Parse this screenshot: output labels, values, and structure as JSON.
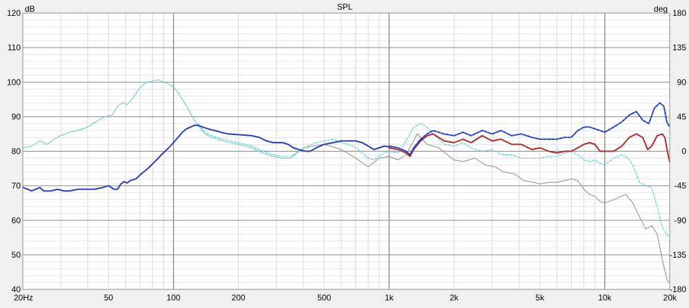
{
  "chart_data": {
    "type": "line",
    "title": "SPL",
    "x_scale": "log",
    "xlim": [
      20,
      20000
    ],
    "ylim": [
      40,
      120
    ],
    "y2lim": [
      -180,
      180
    ],
    "ylabel": "dB",
    "y2label": "deg",
    "x_major_ticks": [
      {
        "v": 20,
        "label": "20Hz"
      },
      {
        "v": 50,
        "label": "50"
      },
      {
        "v": 100,
        "label": "100"
      },
      {
        "v": 200,
        "label": "200"
      },
      {
        "v": 500,
        "label": "500"
      },
      {
        "v": 1000,
        "label": "1k"
      },
      {
        "v": 2000,
        "label": "2k"
      },
      {
        "v": 5000,
        "label": "5k"
      },
      {
        "v": 10000,
        "label": "10k"
      },
      {
        "v": 20000,
        "label": "20k"
      }
    ],
    "y_ticks": [
      {
        "v": 40,
        "label": "40"
      },
      {
        "v": 50,
        "label": "50"
      },
      {
        "v": 60,
        "label": "60"
      },
      {
        "v": 70,
        "label": "70"
      },
      {
        "v": 80,
        "label": "80"
      },
      {
        "v": 90,
        "label": "90"
      },
      {
        "v": 100,
        "label": "100"
      },
      {
        "v": 110,
        "label": "110"
      },
      {
        "v": 120,
        "label": "120"
      }
    ],
    "y2_ticks": [
      {
        "v": -180,
        "label": "-180"
      },
      {
        "v": -135,
        "label": "-135"
      },
      {
        "v": -90,
        "label": "-90"
      },
      {
        "v": -45,
        "label": "-45"
      },
      {
        "v": 0,
        "label": "0"
      },
      {
        "v": 45,
        "label": "45"
      },
      {
        "v": 90,
        "label": "90"
      },
      {
        "v": 135,
        "label": "135"
      },
      {
        "v": 180,
        "label": "180"
      }
    ],
    "grid": true,
    "series": [
      {
        "color": "#888888",
        "dash": "solid",
        "width": 1,
        "points": [
          [
            400,
            81
          ],
          [
            500,
            82
          ],
          [
            600,
            80.5
          ],
          [
            700,
            78
          ],
          [
            800,
            75.5
          ],
          [
            900,
            78
          ],
          [
            1000,
            78.5
          ],
          [
            1100,
            77.5
          ],
          [
            1200,
            79
          ],
          [
            1350,
            85
          ],
          [
            1500,
            82
          ],
          [
            1700,
            81
          ],
          [
            1900,
            78.5
          ],
          [
            2000,
            77.5
          ],
          [
            2200,
            77
          ],
          [
            2500,
            78
          ],
          [
            2800,
            76
          ],
          [
            3100,
            75.5
          ],
          [
            3400,
            74
          ],
          [
            3800,
            73.5
          ],
          [
            4200,
            71.5
          ],
          [
            4700,
            71
          ],
          [
            5000,
            70.5
          ],
          [
            5500,
            71
          ],
          [
            6000,
            71
          ],
          [
            6500,
            71.5
          ],
          [
            7000,
            72
          ],
          [
            7500,
            71.5
          ],
          [
            8000,
            69
          ],
          [
            8500,
            67.5
          ],
          [
            9000,
            67
          ],
          [
            9500,
            65.5
          ],
          [
            10000,
            65
          ],
          [
            11000,
            66
          ],
          [
            12500,
            67.5
          ],
          [
            13500,
            65
          ],
          [
            14500,
            61
          ],
          [
            15500,
            57.5
          ],
          [
            16500,
            58.5
          ],
          [
            17500,
            56
          ],
          [
            18500,
            48.5
          ],
          [
            19500,
            42.5
          ],
          [
            20000,
            42
          ]
        ]
      },
      {
        "color": "#5cc9be",
        "dash": "solid",
        "width": 1,
        "points": [
          [
            20,
            81
          ],
          [
            22,
            81.5
          ],
          [
            24,
            83
          ],
          [
            26,
            82
          ],
          [
            28,
            83.5
          ],
          [
            30,
            84.5
          ],
          [
            33,
            85.5
          ],
          [
            36,
            86
          ],
          [
            40,
            87
          ],
          [
            45,
            89
          ],
          [
            48,
            90
          ],
          [
            52,
            90.5
          ],
          [
            55,
            93
          ],
          [
            58,
            94
          ],
          [
            61,
            93.5
          ],
          [
            65,
            95.5
          ],
          [
            70,
            98.5
          ],
          [
            75,
            100
          ],
          [
            80,
            100.3
          ],
          [
            85,
            100.7
          ],
          [
            90,
            100
          ],
          [
            95,
            99.5
          ],
          [
            100,
            98.5
          ],
          [
            105,
            97
          ],
          [
            110,
            95
          ],
          [
            115,
            93
          ],
          [
            120,
            91
          ],
          [
            125,
            89
          ],
          [
            130,
            87.5
          ],
          [
            140,
            85
          ],
          [
            150,
            84
          ],
          [
            170,
            83
          ],
          [
            200,
            82
          ],
          [
            230,
            81
          ],
          [
            260,
            79.5
          ],
          [
            290,
            78.5
          ],
          [
            320,
            78
          ],
          [
            350,
            78
          ],
          [
            400,
            81
          ]
        ]
      },
      {
        "color": "#44cccc",
        "dash": "4,2",
        "width": 1,
        "points": [
          [
            130,
            88
          ],
          [
            140,
            85.5
          ],
          [
            150,
            84.5
          ],
          [
            170,
            83.5
          ],
          [
            200,
            82.5
          ],
          [
            230,
            81.5
          ],
          [
            260,
            80
          ],
          [
            290,
            79
          ],
          [
            320,
            78.5
          ],
          [
            350,
            78.5
          ],
          [
            380,
            80
          ],
          [
            420,
            81.5
          ],
          [
            460,
            82.5
          ],
          [
            500,
            83
          ],
          [
            550,
            83.5
          ],
          [
            600,
            82.5
          ],
          [
            650,
            82
          ],
          [
            700,
            81
          ],
          [
            750,
            79.5
          ],
          [
            800,
            78
          ],
          [
            850,
            77.5
          ],
          [
            900,
            78.5
          ],
          [
            950,
            79.5
          ],
          [
            1000,
            80
          ],
          [
            1100,
            79.5
          ],
          [
            1200,
            83
          ],
          [
            1300,
            87
          ],
          [
            1400,
            88
          ],
          [
            1500,
            87
          ],
          [
            1600,
            85
          ],
          [
            1800,
            82
          ],
          [
            2000,
            81.5
          ],
          [
            2200,
            82.5
          ],
          [
            2400,
            81
          ],
          [
            2700,
            80
          ],
          [
            3000,
            80.5
          ],
          [
            3300,
            79
          ],
          [
            3700,
            79
          ],
          [
            4100,
            78
          ],
          [
            4600,
            78
          ],
          [
            5000,
            78
          ],
          [
            5500,
            78.5
          ],
          [
            6000,
            78.5
          ],
          [
            6500,
            79.5
          ],
          [
            7000,
            80
          ],
          [
            7500,
            79
          ],
          [
            8000,
            77.5
          ],
          [
            8500,
            77
          ],
          [
            9000,
            77.5
          ],
          [
            9500,
            76.5
          ],
          [
            10000,
            76
          ],
          [
            11000,
            78
          ],
          [
            12000,
            79
          ],
          [
            12800,
            78
          ],
          [
            13500,
            76
          ],
          [
            14500,
            71
          ],
          [
            15500,
            70
          ],
          [
            16500,
            69.5
          ],
          [
            17500,
            64
          ],
          [
            18500,
            58
          ],
          [
            19500,
            55.5
          ],
          [
            20000,
            55.5
          ]
        ]
      },
      {
        "color": "#b02828",
        "dash": "solid",
        "width": 2,
        "points": [
          [
            1000,
            81
          ],
          [
            1100,
            80.5
          ],
          [
            1200,
            79.5
          ],
          [
            1250,
            78.5
          ],
          [
            1300,
            80.5
          ],
          [
            1400,
            83
          ],
          [
            1500,
            84.5
          ],
          [
            1600,
            85
          ],
          [
            1800,
            83
          ],
          [
            2000,
            82.5
          ],
          [
            2200,
            83.5
          ],
          [
            2400,
            82.5
          ],
          [
            2700,
            84.5
          ],
          [
            3000,
            83
          ],
          [
            3300,
            83.5
          ],
          [
            3700,
            82
          ],
          [
            4100,
            82
          ],
          [
            4600,
            80.5
          ],
          [
            5000,
            81
          ],
          [
            5500,
            80
          ],
          [
            6000,
            79.5
          ],
          [
            6500,
            80
          ],
          [
            7000,
            80
          ],
          [
            7500,
            81
          ],
          [
            8000,
            82
          ],
          [
            8500,
            82.5
          ],
          [
            9000,
            82
          ],
          [
            9500,
            80
          ],
          [
            10000,
            80
          ],
          [
            11000,
            80
          ],
          [
            12000,
            81.5
          ],
          [
            13000,
            84
          ],
          [
            14000,
            85
          ],
          [
            15000,
            84
          ],
          [
            15800,
            80.5
          ],
          [
            16500,
            81.5
          ],
          [
            17500,
            84.5
          ],
          [
            18500,
            85
          ],
          [
            19000,
            84
          ],
          [
            19500,
            80
          ],
          [
            20000,
            77
          ]
        ]
      },
      {
        "color": "#2040cc",
        "dash": "4,2",
        "width": 2,
        "points": [
          [
            1000,
            81.5
          ],
          [
            1100,
            81
          ],
          [
            1200,
            80
          ],
          [
            1250,
            79
          ],
          [
            1300,
            81
          ],
          [
            1400,
            83.5
          ],
          [
            1500,
            85
          ],
          [
            1600,
            86
          ],
          [
            1800,
            85
          ],
          [
            2000,
            84.5
          ],
          [
            2200,
            85.5
          ],
          [
            2400,
            84.5
          ],
          [
            2700,
            86
          ],
          [
            3000,
            85
          ],
          [
            3300,
            86
          ],
          [
            3700,
            84.5
          ],
          [
            4100,
            85
          ],
          [
            4600,
            84
          ],
          [
            5000,
            83.5
          ],
          [
            5500,
            83.5
          ],
          [
            6000,
            83.5
          ],
          [
            6500,
            84
          ],
          [
            7000,
            84
          ],
          [
            7500,
            86
          ],
          [
            8000,
            87
          ],
          [
            8500,
            87
          ],
          [
            9000,
            86.5
          ],
          [
            9500,
            86
          ],
          [
            10000,
            85.5
          ],
          [
            11000,
            87
          ],
          [
            12000,
            88.5
          ],
          [
            13000,
            90.5
          ],
          [
            14000,
            91.5
          ],
          [
            15000,
            89
          ],
          [
            16000,
            88
          ],
          [
            17000,
            92.5
          ],
          [
            18000,
            94
          ],
          [
            18800,
            93
          ],
          [
            19400,
            88.5
          ],
          [
            20000,
            87
          ]
        ]
      },
      {
        "color": "#2a3cb0",
        "dash": "solid",
        "width": 2,
        "points": [
          [
            20,
            69.5
          ],
          [
            21,
            69
          ],
          [
            22,
            68.5
          ],
          [
            23,
            69
          ],
          [
            24,
            69.5
          ],
          [
            25,
            68.5
          ],
          [
            27,
            68.5
          ],
          [
            29,
            69
          ],
          [
            31,
            68.5
          ],
          [
            33,
            68.5
          ],
          [
            36,
            69
          ],
          [
            40,
            69
          ],
          [
            43,
            69
          ],
          [
            47,
            69.5
          ],
          [
            50,
            70
          ],
          [
            53,
            69
          ],
          [
            55,
            69
          ],
          [
            57,
            70.5
          ],
          [
            59,
            71.2
          ],
          [
            61,
            70.8
          ],
          [
            63,
            71.5
          ],
          [
            67,
            72
          ],
          [
            71,
            73.5
          ],
          [
            76,
            75
          ],
          [
            82,
            77
          ],
          [
            88,
            79
          ],
          [
            95,
            81
          ],
          [
            100,
            82.5
          ],
          [
            105,
            84
          ],
          [
            110,
            85.5
          ],
          [
            115,
            86.5
          ],
          [
            120,
            87
          ],
          [
            125,
            87.5
          ],
          [
            130,
            87.5
          ],
          [
            140,
            86.8
          ],
          [
            150,
            86.2
          ],
          [
            160,
            85.8
          ],
          [
            170,
            85.3
          ],
          [
            180,
            85
          ],
          [
            200,
            84.8
          ],
          [
            230,
            84.5
          ],
          [
            250,
            84
          ],
          [
            270,
            83
          ],
          [
            290,
            82.5
          ],
          [
            320,
            82.5
          ],
          [
            340,
            82
          ],
          [
            360,
            81
          ],
          [
            380,
            80.5
          ],
          [
            410,
            80
          ],
          [
            430,
            80
          ],
          [
            460,
            81
          ],
          [
            500,
            82
          ],
          [
            550,
            82.5
          ],
          [
            600,
            83
          ],
          [
            650,
            83
          ],
          [
            700,
            83
          ],
          [
            750,
            82.5
          ],
          [
            800,
            81.5
          ],
          [
            850,
            80.5
          ],
          [
            900,
            81
          ],
          [
            950,
            81.5
          ],
          [
            1000,
            81.3
          ]
        ]
      }
    ]
  }
}
